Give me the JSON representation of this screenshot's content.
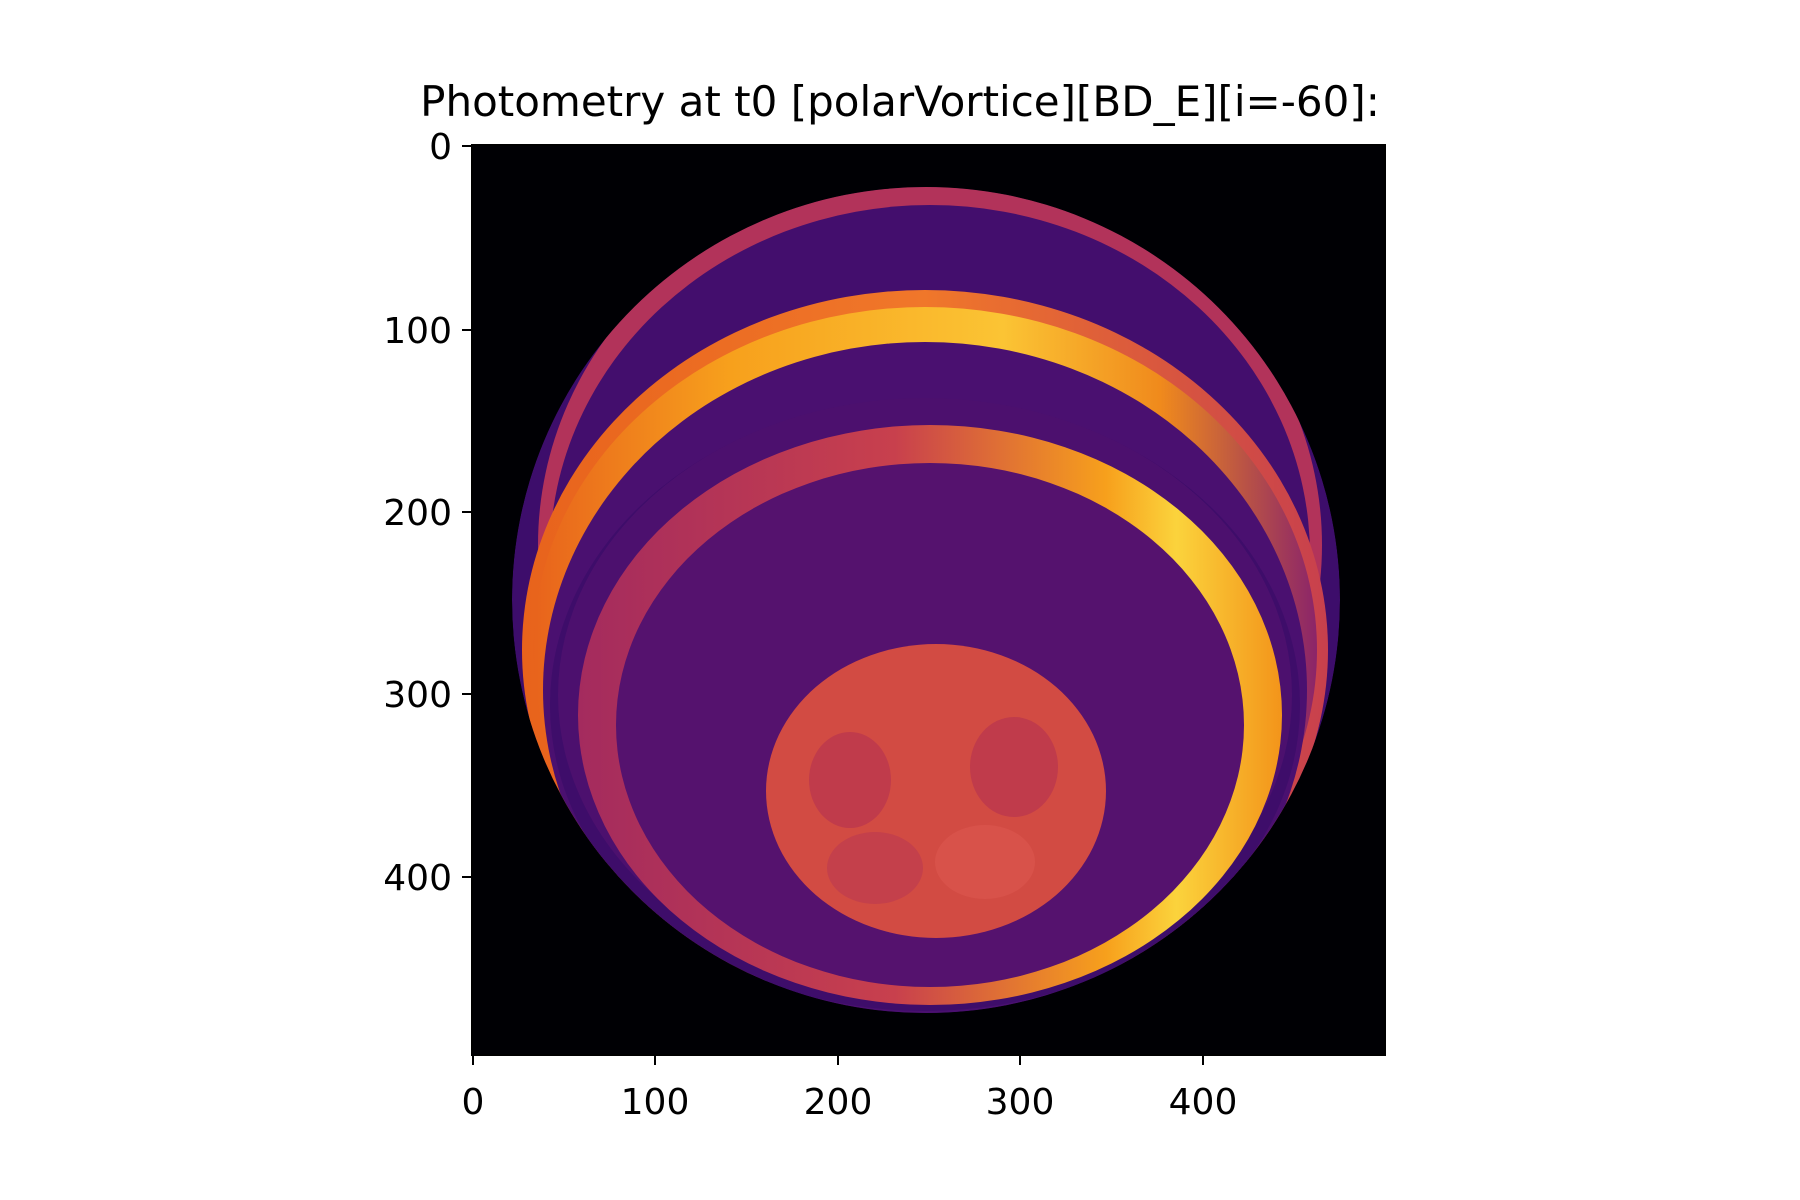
{
  "figure": {
    "title": "Photometry at t0 [polarVortice][BD_E][i=-60]:",
    "x_ticks": [
      "0",
      "100",
      "200",
      "300",
      "400"
    ],
    "y_ticks": [
      "0",
      "100",
      "200",
      "300",
      "400"
    ],
    "colormap": "inferno",
    "colors": {
      "background": "#000004",
      "disk_dark": "#3d0d6b",
      "band_purple": "#55126e",
      "band_magenta": "#a42b5e",
      "band_orange": "#f7a01c",
      "band_yellow": "#fbd33c",
      "spot_orange": "#d24b43"
    }
  }
}
